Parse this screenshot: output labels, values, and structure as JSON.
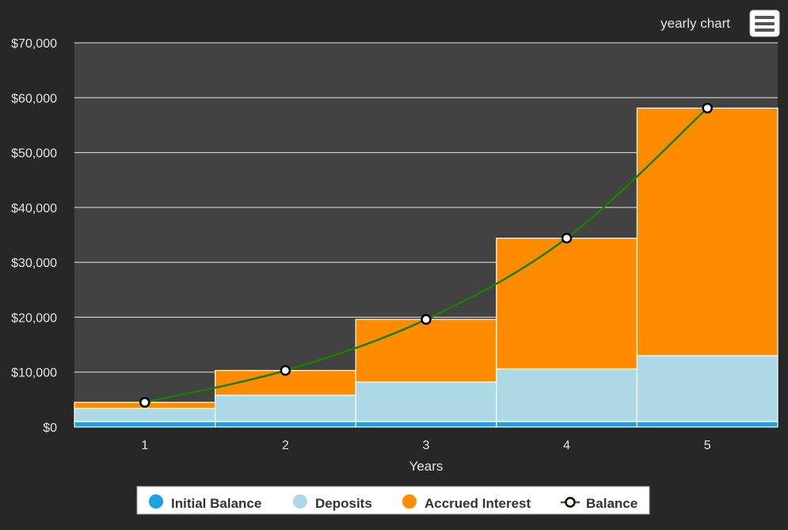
{
  "header": {
    "chart_label": "yearly chart",
    "menu_icon": "hamburger-menu-icon"
  },
  "colors": {
    "background": "#272727",
    "plot_background": "#424242",
    "grid": "#e6e6e6",
    "initial_balance": "#1aa3e3",
    "deposits": "#add8e6",
    "accrued_interest": "#ff8c00",
    "balance_line": "#1a7f00",
    "text": "#e6e6e6"
  },
  "chart_data": {
    "type": "bar",
    "stacked": true,
    "xlabel": "Years",
    "ylabel": "",
    "categories": [
      "1",
      "2",
      "3",
      "4",
      "5"
    ],
    "y_ticks": [
      "$0",
      "$10,000",
      "$20,000",
      "$30,000",
      "$40,000",
      "$50,000",
      "$60,000",
      "$70,000"
    ],
    "ylim": [
      0,
      70000
    ],
    "grid": true,
    "legend_position": "bottom-center",
    "series": [
      {
        "name": "Initial Balance",
        "kind": "bar",
        "values": [
          1000,
          1000,
          1000,
          1000,
          1000
        ]
      },
      {
        "name": "Deposits",
        "kind": "bar",
        "values": [
          2400,
          4800,
          7200,
          9600,
          12000
        ]
      },
      {
        "name": "Accrued Interest",
        "kind": "bar",
        "values": [
          1100,
          4500,
          11400,
          23800,
          45100
        ]
      },
      {
        "name": "Balance",
        "kind": "line",
        "values": [
          4500,
          10300,
          19600,
          34400,
          58100
        ]
      }
    ]
  }
}
